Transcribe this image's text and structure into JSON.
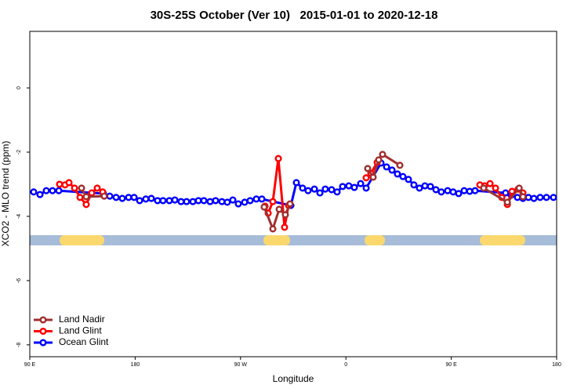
{
  "chart_data": {
    "type": "line",
    "title": "30S-25S October (Ver 10)   2015-01-01 to 2020-12-18",
    "x_label": "Longitude",
    "y_label": "XCO2 - MLO trend (ppm)",
    "xlim": [
      90,
      540
    ],
    "ylim": [
      -8.37,
      1.76
    ],
    "xticks": [
      {
        "value": 90,
        "label": "90 E"
      },
      180,
      {
        "value": 270,
        "label": "90 W"
      },
      {
        "value": 360,
        "label": "0"
      },
      {
        "value": 450,
        "label": "90 E"
      },
      {
        "value": 540,
        "label": "180"
      }
    ],
    "yticks": [
      0,
      -2,
      -4,
      -6,
      -8
    ],
    "legend": "bottom-left",
    "series": [
      {
        "name": "Land Nadir",
        "color": "#a03030",
        "x": [
          134.2,
          138.2,
          153.6,
          220,
          290.2,
          297.6,
          303.0,
          308.3,
          312.3,
          340,
          378.6,
          383.3,
          388.0,
          391.3,
          406.1,
          440,
          477.7,
          497.9,
          508.0,
          511.2
        ],
        "values": [
          -3.12,
          -3.39,
          -3.37,
          null,
          -3.71,
          -4.39,
          -3.78,
          -3.95,
          -3.61,
          null,
          -2.51,
          -2.78,
          -2.24,
          -2.07,
          -2.41,
          null,
          -3.12,
          -3.56,
          -3.12,
          -3.39
        ]
      },
      {
        "name": "Land Glint",
        "color": "#ff0000",
        "x": [
          115.4,
          120.1,
          123.5,
          128.2,
          132.9,
          138.2,
          142.9,
          147.6,
          152.3,
          220,
          290.9,
          293.6,
          297.6,
          302.3,
          307.6,
          311.0,
          340,
          377.3,
          381.3,
          386.7,
          440,
          474.4,
          478.4,
          483.1,
          487.8,
          493.2,
          497.9,
          501.9,
          507.2,
          511.2
        ],
        "values": [
          -3.0,
          -3.02,
          -2.95,
          -3.12,
          -3.41,
          -3.63,
          -3.27,
          -3.12,
          -3.24,
          null,
          -3.68,
          -3.9,
          -3.54,
          -2.2,
          -4.34,
          -3.66,
          null,
          -2.8,
          -2.66,
          -2.32,
          null,
          -3.02,
          -3.05,
          -2.98,
          -3.12,
          -3.41,
          -3.63,
          -3.22,
          -3.15,
          -3.27
        ]
      },
      {
        "name": "Ocean Glint",
        "color": "#0000ff",
        "x": [
          93.3,
          98.7,
          104.1,
          109.4,
          114.8,
          152.9,
          158.3,
          163.7,
          169.0,
          174.4,
          179.1,
          183.8,
          189.1,
          193.8,
          199.1,
          203.8,
          209.2,
          213.9,
          219.2,
          223.9,
          229.3,
          234.0,
          238.7,
          244.0,
          248.7,
          254.1,
          258.7,
          263.4,
          268.1,
          273.5,
          278.2,
          283.5,
          288.2,
          313.0,
          317.7,
          323.0,
          327.7,
          333.1,
          337.8,
          342.4,
          347.8,
          352.5,
          357.2,
          362.5,
          367.2,
          372.6,
          377.3,
          390.0,
          394.7,
          399.4,
          404.0,
          408.7,
          413.4,
          418.1,
          422.8,
          427.5,
          432.2,
          436.9,
          441.5,
          446.9,
          451.6,
          456.3,
          461.0,
          465.7,
          470.3,
          496.4,
          501.1,
          506.5,
          511.2,
          515.9,
          520.6,
          525.9,
          531.3,
          537.3
        ],
        "values": [
          -3.24,
          -3.32,
          -3.2,
          -3.2,
          -3.2,
          -3.29,
          -3.37,
          -3.41,
          -3.44,
          -3.41,
          -3.41,
          -3.51,
          -3.46,
          -3.44,
          -3.51,
          -3.51,
          -3.51,
          -3.49,
          -3.54,
          -3.54,
          -3.54,
          -3.51,
          -3.51,
          -3.54,
          -3.51,
          -3.54,
          -3.56,
          -3.49,
          -3.61,
          -3.56,
          -3.51,
          -3.46,
          -3.46,
          -3.66,
          -2.95,
          -3.12,
          -3.2,
          -3.15,
          -3.27,
          -3.15,
          -3.17,
          -3.24,
          -3.07,
          -3.05,
          -3.1,
          -2.98,
          -3.12,
          -2.34,
          -2.46,
          -2.56,
          -2.68,
          -2.76,
          -2.85,
          -3.02,
          -3.12,
          -3.05,
          -3.07,
          -3.17,
          -3.24,
          -3.2,
          -3.24,
          -3.29,
          -3.2,
          -3.22,
          -3.2,
          -3.27,
          -3.34,
          -3.41,
          -3.44,
          -3.41,
          -3.44,
          -3.41,
          -3.41,
          -3.41
        ]
      }
    ]
  }
}
